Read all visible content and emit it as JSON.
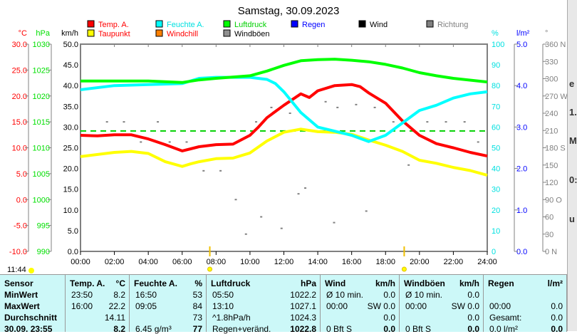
{
  "chart_data": {
    "type": "line",
    "title": "Samstag, 30.09.2023",
    "x_unit": "hours",
    "xlim": [
      0,
      24
    ],
    "x_ticks": [
      "00:00",
      "02:00",
      "04:00",
      "06:00",
      "08:00",
      "10:00",
      "12:00",
      "14:00",
      "16:00",
      "18:00",
      "20:00",
      "22:00",
      "24:00"
    ],
    "axes": {
      "celsius": {
        "label": "°C",
        "range": [
          -10,
          30
        ],
        "ticks": [
          "30.0",
          "25.0",
          "20.0",
          "15.0",
          "10.0",
          "5.0",
          "0.0",
          "-5.0",
          "-10.0"
        ],
        "color": "#ff0000"
      },
      "hpa": {
        "label": "hPa",
        "range": [
          990,
          1030
        ],
        "ticks": [
          "1030",
          "1025",
          "1020",
          "1015",
          "1010",
          "1005",
          "1000",
          "995",
          "990"
        ],
        "color": "#00e000"
      },
      "kmh": {
        "label": "km/h",
        "range": [
          0,
          50
        ],
        "ticks": [
          "50.0",
          "45.0",
          "40.0",
          "35.0",
          "30.0",
          "25.0",
          "20.0",
          "15.0",
          "10.0",
          "5.0",
          "0.0"
        ],
        "color": "#000000"
      },
      "percent": {
        "label": "%",
        "range": [
          0,
          100
        ],
        "ticks": [
          "100",
          "90",
          "80",
          "70",
          "60",
          "50",
          "40",
          "30",
          "20",
          "10",
          "0"
        ],
        "color": "#00e0e0"
      },
      "rain": {
        "label": "l/m²",
        "range": [
          0,
          5
        ],
        "ticks": [
          "5.0",
          "4.0",
          "3.0",
          "2.0",
          "1.0",
          "0.0"
        ],
        "color": "#0000ff"
      },
      "direction": {
        "label": "°",
        "range": [
          0,
          360
        ],
        "ticks": [
          "360 N",
          "330",
          "300",
          "270 W",
          "240",
          "210",
          "180 S",
          "150",
          "120",
          "90  O",
          "60",
          "30",
          "0   N"
        ],
        "color": "#808080"
      }
    },
    "legend": [
      {
        "name": "Temp. A.",
        "color": "#ff0000",
        "text_color": "#ff0000"
      },
      {
        "name": "Feuchte A.",
        "color": "#00ffff",
        "text_color": "#00e0e0"
      },
      {
        "name": "Luftdruck",
        "color": "#00ff00",
        "text_color": "#00d000"
      },
      {
        "name": "Regen",
        "color": "#0000ff",
        "text_color": "#0000ff"
      },
      {
        "name": "Wind",
        "color": "#000000",
        "text_color": "#000000"
      },
      {
        "name": "Richtung",
        "color": "#808080",
        "text_color": "#808080"
      },
      {
        "name": "Taupunkt",
        "color": "#ffff00",
        "text_color": "#ff0000"
      },
      {
        "name": "Windchill",
        "color": "#ff8000",
        "text_color": "#ff0000"
      },
      {
        "name": "Windböen",
        "color": "#909090",
        "text_color": "#000000"
      }
    ],
    "series": [
      {
        "name": "Temp. A.",
        "axis": "celsius",
        "color": "#ff0000",
        "x": [
          0,
          1,
          2,
          3,
          4,
          5,
          6,
          6.5,
          7,
          8,
          9,
          10,
          10.5,
          11,
          12,
          13,
          13.5,
          14,
          15,
          16,
          16.5,
          17,
          18,
          19,
          20,
          21,
          22,
          23,
          24
        ],
        "values": [
          12.4,
          12.3,
          12.5,
          12.5,
          11.7,
          10.6,
          9.4,
          9.8,
          10.2,
          10.6,
          10.7,
          12.4,
          14.0,
          15.8,
          18.2,
          20.4,
          19.7,
          21.0,
          22.0,
          22.2,
          21.8,
          20.6,
          18.6,
          15.2,
          12.4,
          10.8,
          10.0,
          9.1,
          8.4
        ]
      },
      {
        "name": "Taupunkt",
        "axis": "celsius",
        "color": "#ffff00",
        "x": [
          0,
          2,
          3,
          4,
          5,
          6,
          6.5,
          7,
          8,
          9,
          10,
          11,
          12,
          13,
          14,
          15,
          16,
          17,
          18,
          19,
          20,
          21,
          22,
          23,
          24
        ],
        "values": [
          8.3,
          9.1,
          9.3,
          8.9,
          7.3,
          6.4,
          6.9,
          7.3,
          7.9,
          8.0,
          9.0,
          11.3,
          13.0,
          13.6,
          13.1,
          13.0,
          12.6,
          11.5,
          10.5,
          9.3,
          7.6,
          7.0,
          6.2,
          5.6,
          4.7
        ]
      },
      {
        "name": "Feuchte A.",
        "axis": "percent",
        "color": "#00ffff",
        "x": [
          0,
          2,
          4,
          6,
          7,
          8,
          9,
          10,
          11,
          11.5,
          12,
          13,
          14,
          15,
          16,
          17,
          18,
          19,
          20,
          21,
          22,
          23,
          24
        ],
        "values": [
          78,
          80,
          80.5,
          81,
          83.5,
          84,
          84,
          84,
          83,
          81,
          77,
          67,
          60,
          58,
          56,
          53,
          56,
          62,
          68,
          70.5,
          74,
          76,
          77
        ]
      },
      {
        "name": "Luftdruck",
        "axis": "hpa",
        "color": "#00ff00",
        "x": [
          0,
          4,
          6,
          7,
          8,
          10,
          11,
          12,
          13,
          14,
          15,
          16,
          17,
          18,
          19,
          20,
          21,
          22,
          24
        ],
        "values": [
          1022.9,
          1022.9,
          1022.6,
          1023.1,
          1023.4,
          1023.9,
          1024.8,
          1025.9,
          1026.8,
          1027.0,
          1027.1,
          1026.9,
          1026.6,
          1026.1,
          1025.4,
          1024.5,
          1023.9,
          1023.4,
          1022.7
        ]
      }
    ],
    "reference_line": {
      "axis": "hpa",
      "value": 1013.25,
      "color": "#00d000",
      "style": "dashed"
    },
    "direction_points": {
      "x": [
        1.5,
        2.5,
        3.5,
        4.5,
        5.2,
        6.2,
        7.2,
        8.2,
        9.1,
        10.3,
        11.2,
        12.3,
        13.2,
        14.4,
        15.1,
        16.2,
        17.3,
        18.4,
        19.3,
        20.4,
        21.5,
        22.6,
        23.4,
        10.6,
        12.8,
        14.9,
        16.8,
        9.7,
        11.8
      ],
      "values": [
        225,
        225,
        190,
        225,
        190,
        190,
        140,
        140,
        90,
        225,
        250,
        240,
        110,
        260,
        250,
        255,
        250,
        225,
        150,
        225,
        225,
        225,
        190,
        60,
        100,
        50,
        70,
        30,
        40
      ]
    },
    "time_markers": {
      "now": "11:44",
      "sunrise_hour": 7.63,
      "sunset_hour": 19.1
    }
  },
  "table": {
    "columns": [
      {
        "header": "Sensor",
        "unit": "",
        "rows": [
          "MinWert",
          "MaxWert",
          "Durchschnitt",
          "30.09. 23:55"
        ]
      },
      {
        "header": "Temp. A.",
        "unit": "°C",
        "left": [
          "23:50",
          "16:00",
          "",
          ""
        ],
        "right": [
          "8.2",
          "22.2",
          "14.11",
          "8.2"
        ]
      },
      {
        "header": "Feuchte A.",
        "unit": "%",
        "left": [
          "16:50",
          "09:05",
          "",
          "6.45 g/m³"
        ],
        "right": [
          "53",
          "84",
          "73",
          "77"
        ]
      },
      {
        "header": "Luftdruck",
        "unit": "hPa",
        "left": [
          "05:50",
          "13:10",
          "^1.8hPa/h",
          "Regen+veränd."
        ],
        "right": [
          "1022.2",
          "1027.1",
          "1024.3",
          "1022.8"
        ]
      },
      {
        "header": "Wind",
        "unit": "km/h",
        "left": [
          "Ø 10 min.",
          "00:00",
          "",
          "0 Bft S"
        ],
        "right": [
          "0.0",
          "SW 0.0",
          "0.0",
          "0.0"
        ]
      },
      {
        "header": "Windböen",
        "unit": "km/h",
        "left": [
          "Ø 10 min.",
          "00:00",
          "",
          "0 Bft S"
        ],
        "right": [
          "0.0",
          "SW 0.0",
          "0.0",
          "0.0"
        ]
      },
      {
        "header": "Regen",
        "unit": "l/m²",
        "left": [
          "",
          "00:00",
          "Gesamt:",
          "0.0 l/m²"
        ],
        "right": [
          "",
          "0.0",
          "0.0",
          "0.0"
        ]
      }
    ]
  },
  "side_panel": {
    "fragments": [
      "e",
      "1.",
      "M",
      "0:",
      "u"
    ]
  }
}
